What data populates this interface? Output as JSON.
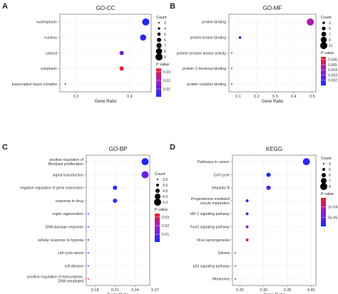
{
  "chart_data": [
    {
      "panel_letter": "A",
      "type": "scatter",
      "title": "GO-CC",
      "xlabel": "Gene Ratio",
      "x_ticks": [
        "0.2",
        "0.4"
      ],
      "xlim": [
        0.14,
        0.48
      ],
      "categories": [
        "nucleoplasm",
        "nucleus",
        "cytosol",
        "cytoplasm",
        "transcription factor complex"
      ],
      "x": [
        0.46,
        0.45,
        0.37,
        0.37,
        0.16
      ],
      "count": [
        9,
        8,
        6,
        6,
        3
      ],
      "pvalue": [
        0.001,
        0.003,
        0.012,
        0.032,
        0.001
      ],
      "size_legend": {
        "title": "Count",
        "labels": [
          "3",
          "4",
          "5",
          "6",
          "7",
          "8",
          "9"
        ],
        "values": [
          3,
          4,
          5,
          6,
          7,
          8,
          9
        ],
        "min_value": 3,
        "max_value": 9
      },
      "color_legend": {
        "title": "P value",
        "labels": [
          "0.03",
          "0.02",
          "0.01"
        ],
        "values": [
          0.03,
          0.02,
          0.01
        ],
        "min": 0.001,
        "max": 0.034
      }
    },
    {
      "panel_letter": "B",
      "type": "scatter",
      "title": "GO-MF",
      "xlabel": "Gene Ratio",
      "x_ticks": [
        "0.1",
        "0.2",
        "0.3",
        "0.4",
        "0.5"
      ],
      "xlim": [
        0.05,
        0.52
      ],
      "categories": [
        "protein binding",
        "protein kinase binding",
        "protein tyrosine kinase activity",
        "protein C-terminus binding",
        "protein complex binding"
      ],
      "x": [
        0.49,
        0.11,
        0.065,
        0.065,
        0.065
      ],
      "count": [
        11,
        3,
        1,
        1,
        1
      ],
      "pvalue": [
        0.0045,
        0.001,
        0.006,
        0.006,
        0.006
      ],
      "size_legend": {
        "title": "Count",
        "labels": [
          "3",
          "5",
          "7",
          "9",
          "11"
        ],
        "values": [
          3,
          5,
          7,
          9,
          11
        ],
        "min_value": 1,
        "max_value": 11
      },
      "color_legend": {
        "title": "P value",
        "labels": [
          "0.006",
          "0.005",
          "0.004",
          "0.003",
          "0.002"
        ],
        "values": [
          0.006,
          0.005,
          0.004,
          0.003,
          0.002
        ],
        "min": 0.001,
        "max": 0.0065
      }
    },
    {
      "panel_letter": "C",
      "type": "scatter",
      "title": "GO-BP",
      "xlabel": "Gene Ratio",
      "x_ticks": [
        "0.18",
        "0.21",
        "0.24",
        "0.27"
      ],
      "xlim": [
        0.167,
        0.262
      ],
      "categories": [
        "positive regulation of\nfibroblast proliferation",
        "signal transduction",
        "negative regulation of gene expression",
        "response to drug",
        "organ regeneration",
        "DNA damage response",
        "cellular response to hypoxia",
        "cell cycle arrest",
        "cell division",
        "positive regulation of transcription,\nDNA-templated"
      ],
      "x": [
        0.255,
        0.255,
        0.21,
        0.21,
        0.17,
        0.17,
        0.17,
        0.17,
        0.17,
        0.17
      ],
      "count": [
        5,
        5,
        4,
        4,
        3,
        3,
        3,
        3,
        3,
        3
      ],
      "pvalue": [
        0.001,
        0.012,
        0.002,
        0.002,
        0.002,
        0.002,
        0.002,
        0.008,
        0.015,
        0.032
      ],
      "size_legend": {
        "title": "Count",
        "labels": [
          "3.0",
          "3.5",
          "4.0",
          "4.5",
          "5.0"
        ],
        "values": [
          3.0,
          3.5,
          4.0,
          4.5,
          5.0
        ],
        "min_value": 3,
        "max_value": 5
      },
      "color_legend": {
        "title": "P value",
        "labels": [
          "0.03",
          "0.02",
          "0.01"
        ],
        "values": [
          0.03,
          0.02,
          0.01
        ],
        "min": 0.001,
        "max": 0.034
      }
    },
    {
      "panel_letter": "D",
      "type": "scatter",
      "title": "KEGG",
      "xlabel": "Gene Ratio",
      "x_ticks": [
        "0.25",
        "0.30",
        "0.35",
        "0.40"
      ],
      "xlim": [
        0.234,
        0.41
      ],
      "categories": [
        "Pathways in cancer",
        "Cell cycle",
        "Hepatitis B",
        "Progesterone-mediated\noocyte maturation",
        "HIF-1 signaling pathway",
        "FoxO signaling pathway",
        "Viral carcinogenesis",
        "Glioma",
        "p53 signaling pathway",
        "Melanoma"
      ],
      "x": [
        0.39,
        0.31,
        0.31,
        0.265,
        0.265,
        0.265,
        0.265,
        0.24,
        0.24,
        0.24
      ],
      "count": [
        8,
        6,
        6,
        5,
        5,
        5,
        5,
        4,
        4,
        4
      ],
      "pvalue": [
        2e-05,
        1e-05,
        2e-05,
        2e-05,
        4e-05,
        7e-05,
        0.00012,
        0.00013,
        0.00012,
        0.00013
      ],
      "size_legend": {
        "title": "Count",
        "labels": [
          "4",
          "5",
          "6",
          "7",
          "8"
        ],
        "values": [
          4,
          5,
          6,
          7,
          8
        ],
        "min_value": 4,
        "max_value": 8
      },
      "color_legend": {
        "title": "P value",
        "labels": [
          "1e-04",
          "5e-05"
        ],
        "values": [
          0.0001,
          5e-05
        ],
        "min": 1e-05,
        "max": 0.00014
      }
    }
  ]
}
